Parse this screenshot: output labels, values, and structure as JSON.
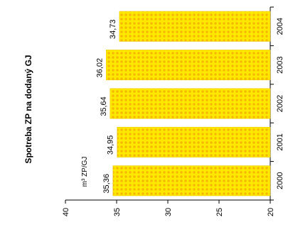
{
  "chart_data": {
    "type": "bar",
    "orientation": "horizontal",
    "title": "Spotreba ZP na dodaný GJ",
    "unit_label": "m³ ZP/GJ",
    "categories": [
      "2000",
      "2001",
      "2002",
      "2003",
      "2004"
    ],
    "values": [
      35.36,
      34.95,
      35.64,
      36.02,
      34.73
    ],
    "value_labels": [
      "35,36",
      "34,95",
      "35,64",
      "36,02",
      "34,73"
    ],
    "value_axis": {
      "min": 20,
      "max": 40,
      "ticks": [
        "20",
        "25",
        "30",
        "35",
        "40"
      ]
    },
    "bar_color": "#FFE800",
    "bar_pattern_color": "#F5B800",
    "grid": false,
    "legend": "none"
  }
}
